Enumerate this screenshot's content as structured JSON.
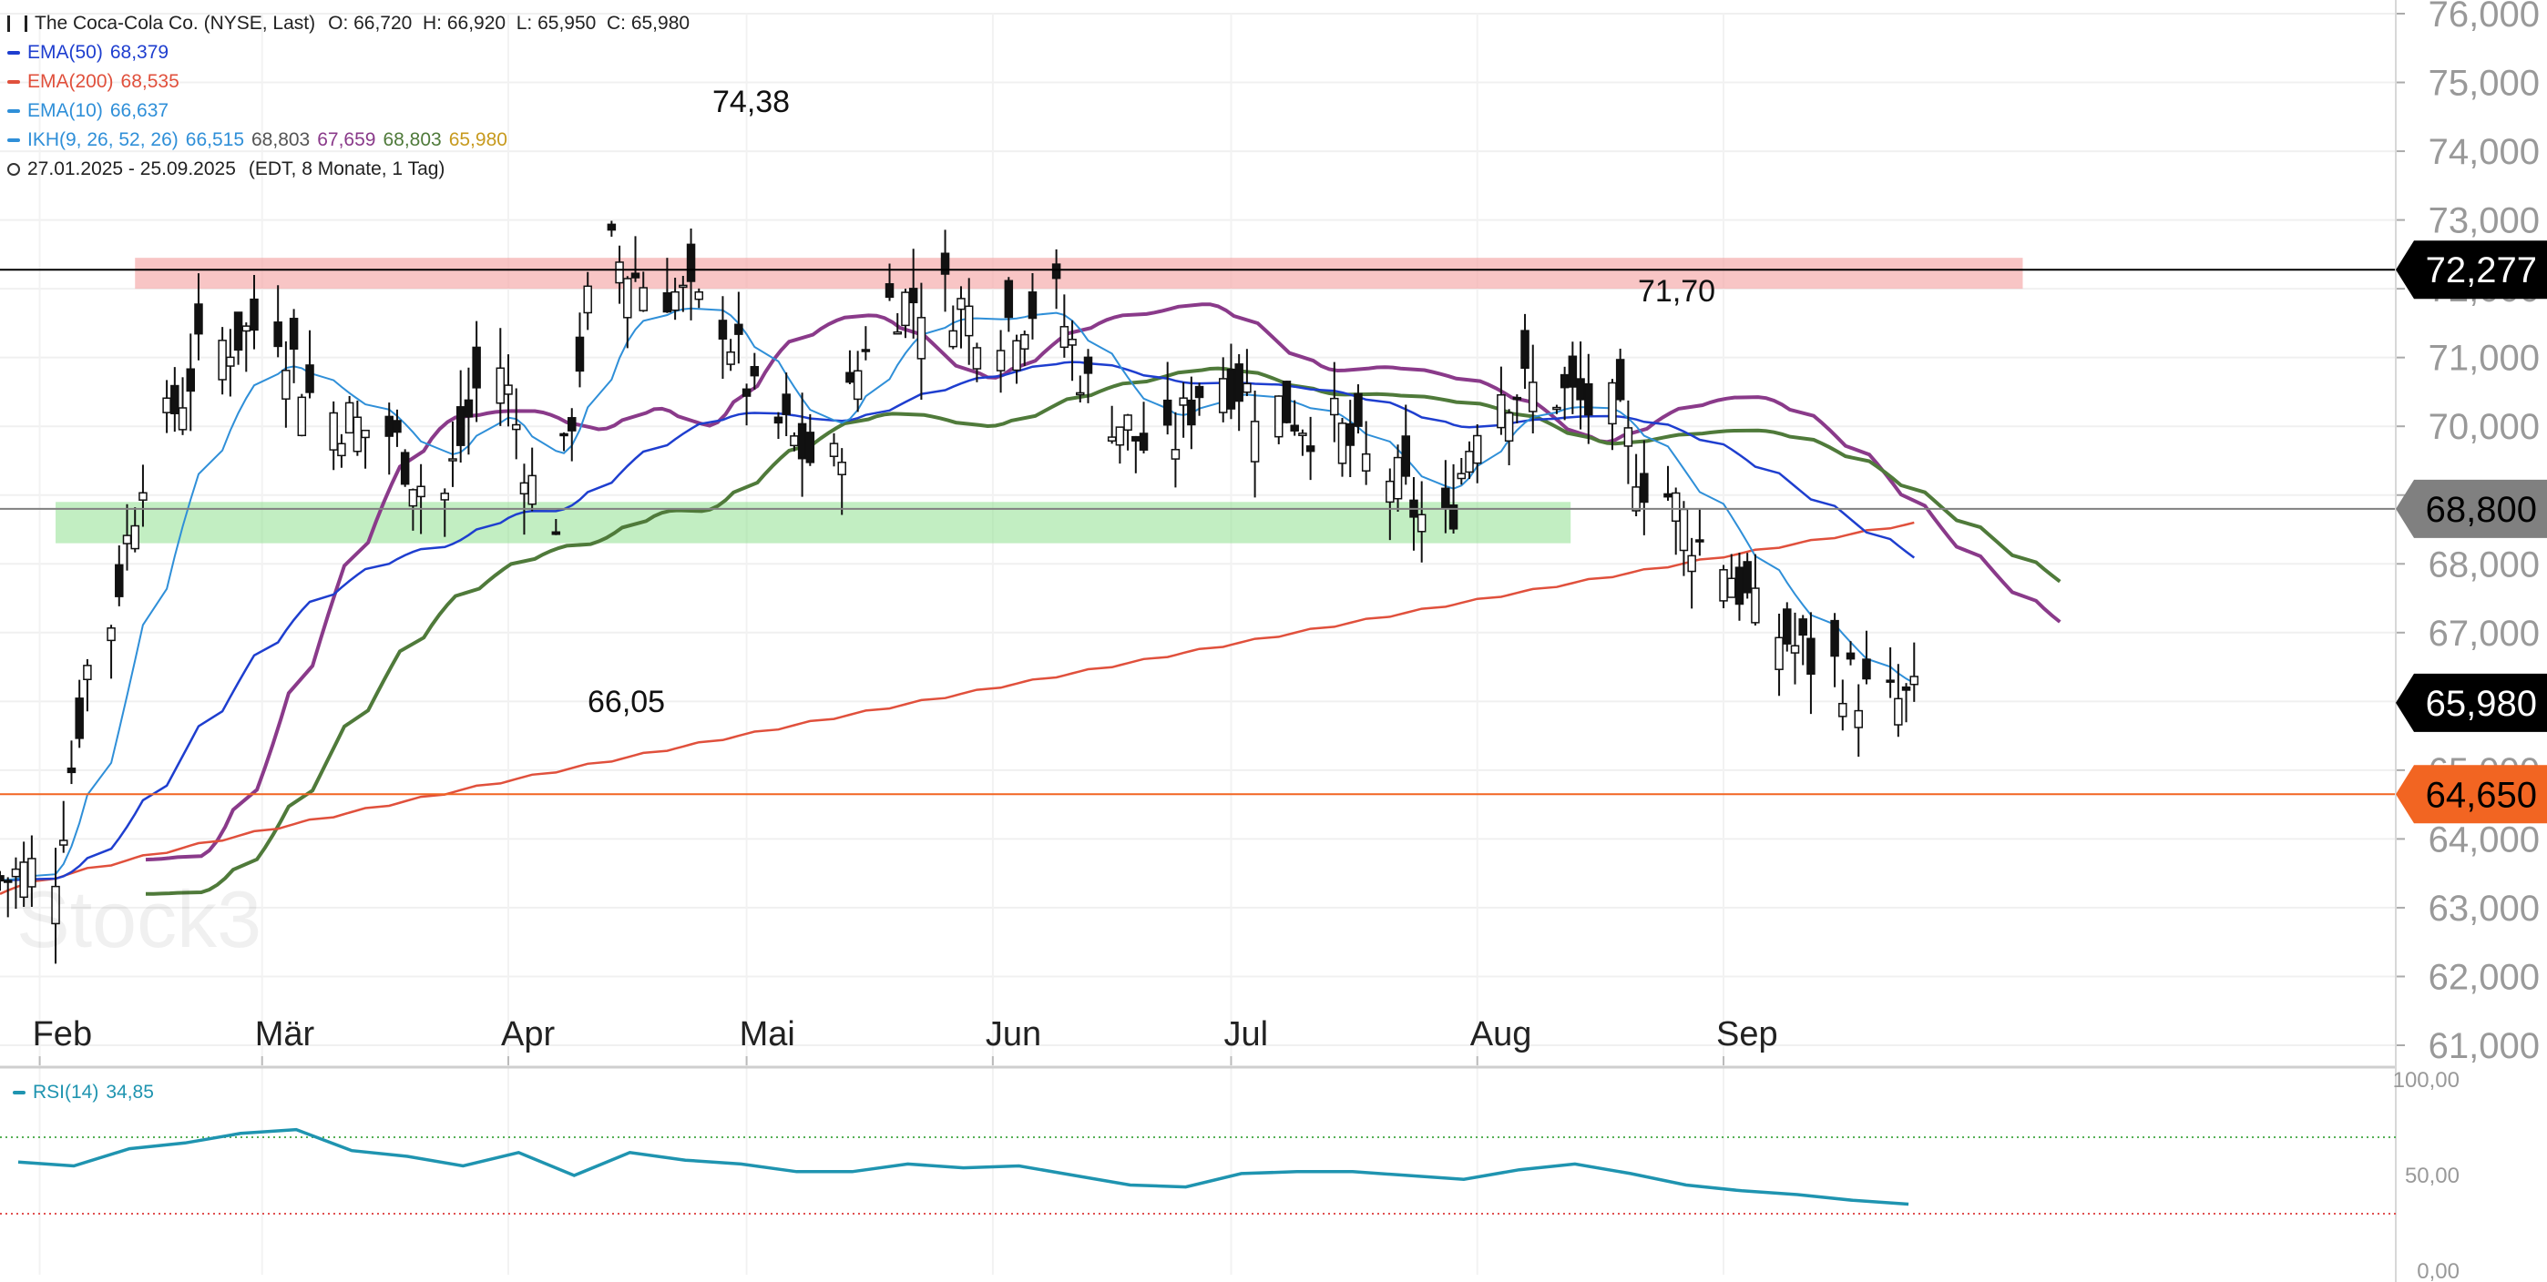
{
  "header": {
    "title": "The Coca-Cola Co. (NYSE, Last)",
    "ohlc": "O: 66,720  H: 66,920  L: 65,950  C: 65,980"
  },
  "legend": [
    {
      "label": "EMA(50)",
      "values": [
        "68,379"
      ],
      "colors": [
        "#1e3ecf"
      ],
      "swatch": "#1e3ecf"
    },
    {
      "label": "EMA(200)",
      "values": [
        "68,535"
      ],
      "colors": [
        "#e0503c"
      ],
      "swatch": "#e0503c"
    },
    {
      "label": "EMA(10)",
      "values": [
        "66,637"
      ],
      "colors": [
        "#2f8fd8"
      ],
      "swatch": "#2f8fd8"
    },
    {
      "label": "IKH(9, 26, 52, 26)",
      "values": [
        "66,515",
        "68,803",
        "67,659",
        "68,803",
        "65,980"
      ],
      "colors": [
        "#2f8fd8",
        "#555555",
        "#8a3a8a",
        "#4f7a3a",
        "#c79a1e"
      ],
      "swatch": "#2f8fd8"
    }
  ],
  "range": {
    "dates": "27.01.2025 - 25.09.2025",
    "detail": "(EDT, 8 Monate, 1 Tag)",
    "icon": "clock-icon"
  },
  "annotations": {
    "high": "74,38",
    "low": "66,05",
    "peak": "71,70"
  },
  "price_tags": [
    {
      "label": "72,277",
      "value": 72.277,
      "bg": "#000000",
      "fg": "#ffffff"
    },
    {
      "label": "68,800",
      "value": 68.8,
      "bg": "#808080",
      "fg": "#000000"
    },
    {
      "label": "65,980",
      "value": 65.98,
      "bg": "#000000",
      "fg": "#ffffff"
    },
    {
      "label": "64,650",
      "value": 64.65,
      "bg": "#f26522",
      "fg": "#000000"
    }
  ],
  "y_axis": {
    "ticks": [
      "76,000",
      "75,000",
      "74,000",
      "73,000",
      "72,000",
      "71,000",
      "70,000",
      "69,000",
      "68,000",
      "67,000",
      "66,000",
      "65,000",
      "64,000",
      "63,000",
      "62,000",
      "61,000"
    ]
  },
  "x_axis": {
    "months": [
      "Feb",
      "Mär",
      "Apr",
      "Mai",
      "Jun",
      "Jul",
      "Aug",
      "Sep"
    ]
  },
  "rsi": {
    "label": "RSI(14)",
    "value": "34,85",
    "color": "#1f94b0",
    "ticks": [
      "100,00",
      "50,00",
      "0,00"
    ],
    "overbought": 70,
    "oversold": 30
  },
  "watermark": "Stock3",
  "chart_data": {
    "type": "candlestick",
    "title": "The Coca-Cola Co. (NYSE, Last)",
    "period": "27.01.2025 - 25.09.2025",
    "ylim": [
      61,
      76
    ],
    "resistance_zone": [
      72.0,
      72.45
    ],
    "support_zone": [
      68.3,
      68.9
    ],
    "hlines": [
      72.277,
      68.8,
      64.65
    ],
    "weekly_closes": [
      [
        "2025-01-27",
        63.4
      ],
      [
        "2025-02-03",
        63.6
      ],
      [
        "2025-02-10",
        67.2
      ],
      [
        "2025-02-17",
        70.0
      ],
      [
        "2025-02-24",
        71.2
      ],
      [
        "2025-03-03",
        71.5
      ],
      [
        "2025-03-10",
        70.2
      ],
      [
        "2025-03-17",
        69.9
      ],
      [
        "2025-03-24",
        69.0
      ],
      [
        "2025-03-31",
        70.9
      ],
      [
        "2025-04-07",
        68.7
      ],
      [
        "2025-04-14",
        72.5
      ],
      [
        "2025-04-21",
        72.0
      ],
      [
        "2025-04-28",
        71.6
      ],
      [
        "2025-05-05",
        70.0
      ],
      [
        "2025-05-12",
        69.4
      ],
      [
        "2025-05-19",
        71.8
      ],
      [
        "2025-05-26",
        71.9
      ],
      [
        "2025-06-02",
        71.5
      ],
      [
        "2025-06-09",
        71.8
      ],
      [
        "2025-06-16",
        70.2
      ],
      [
        "2025-06-23",
        69.6
      ],
      [
        "2025-06-30",
        70.8
      ],
      [
        "2025-07-07",
        70.3
      ],
      [
        "2025-07-14",
        70.0
      ],
      [
        "2025-07-21",
        69.3
      ],
      [
        "2025-07-28",
        68.5
      ],
      [
        "2025-08-04",
        70.6
      ],
      [
        "2025-08-11",
        70.5
      ],
      [
        "2025-08-18",
        70.2
      ],
      [
        "2025-08-25",
        69.0
      ],
      [
        "2025-09-01",
        68.1
      ],
      [
        "2025-09-08",
        67.0
      ],
      [
        "2025-09-15",
        66.5
      ],
      [
        "2025-09-22",
        65.98
      ]
    ],
    "rsi_series": [
      57,
      55,
      64,
      67,
      72,
      74,
      63,
      60,
      55,
      62,
      50,
      62,
      58,
      56,
      52,
      52,
      56,
      54,
      55,
      50,
      45,
      44,
      51,
      52,
      52,
      50,
      48,
      53,
      56,
      51,
      45,
      42,
      40,
      37,
      35
    ]
  }
}
